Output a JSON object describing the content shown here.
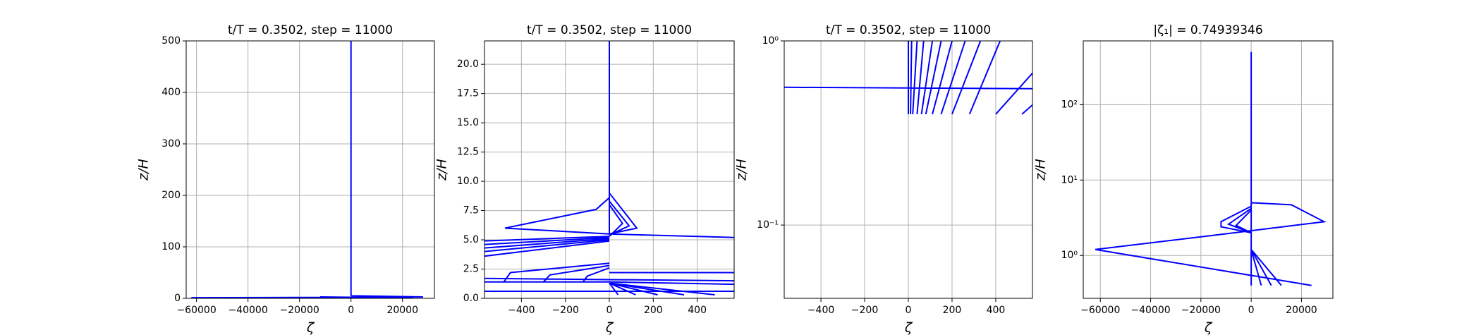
{
  "chart_data": [
    {
      "type": "line",
      "title": "t/T = 0.3502, step = 11000",
      "xlabel": "ζ",
      "ylabel": "z/H",
      "grid": true,
      "color": "#0000ff",
      "yscale": "linear",
      "xlim": [
        -64000,
        32400
      ],
      "ylim": [
        0,
        500
      ],
      "xticks": [
        {
          "value": -60000,
          "label": "−60000"
        },
        {
          "value": -40000,
          "label": "−40000"
        },
        {
          "value": -20000,
          "label": "−20000"
        },
        0,
        20000
      ],
      "yticks": [
        0,
        100,
        200,
        300,
        400,
        500
      ],
      "series": [
        {
          "color": "#0000ff",
          "x": [
            0,
            0,
            null,
            0,
            -62000,
            0,
            28000,
            0,
            null,
            -12000,
            0,
            24000
          ],
          "values": [
            5,
            500,
            null,
            0.4,
            1.2,
            2,
            2.8,
            5,
            null,
            2.8,
            2,
            0.4
          ]
        }
      ]
    },
    {
      "type": "line",
      "title": "t/T = 0.3502, step = 11000",
      "xlabel": "ζ",
      "ylabel": "z/H",
      "grid": true,
      "color": "#0000ff",
      "yscale": "linear",
      "xlim": [
        -568,
        568
      ],
      "ylim": [
        0,
        22
      ],
      "xticks": [
        {
          "value": -400,
          "label": "−400"
        },
        {
          "value": -200,
          "label": "−200"
        },
        0,
        200,
        400
      ],
      "yticks": [
        {
          "value": 0,
          "label": "0.0"
        },
        2.5,
        {
          "value": 5,
          "label": "5.0"
        },
        7.5,
        {
          "value": 10,
          "label": "10.0"
        },
        12.5,
        {
          "value": 15,
          "label": "15.0"
        },
        17.5,
        {
          "value": 20,
          "label": "20.0"
        }
      ],
      "series": [
        {
          "color": "#0000ff",
          "x": [
            0,
            0,
            null,
            0,
            -60,
            -475,
            0,
            570,
            null,
            0,
            125,
            0,
            null,
            0,
            90,
            0,
            null,
            0,
            60,
            0,
            null,
            -570,
            0,
            null,
            -570,
            0,
            null,
            -570,
            0,
            null,
            -570,
            0,
            null,
            -570,
            0,
            null,
            -480,
            -450,
            0,
            null,
            -300,
            -270,
            0,
            null,
            -120,
            -100,
            0,
            null,
            -570,
            0,
            570,
            null,
            -570,
            0,
            570,
            null,
            0,
            570,
            null,
            -570,
            570,
            null,
            0,
            40,
            null,
            0,
            120,
            null,
            0,
            220,
            null,
            0,
            340,
            null,
            0,
            480
          ],
          "values": [
            5.5,
            22,
            null,
            8.6,
            7.6,
            6.0,
            5.5,
            5.2,
            null,
            9,
            6.0,
            5.5,
            null,
            8.3,
            6.2,
            5.4,
            null,
            8.0,
            6.4,
            5.3,
            null,
            4.9,
            5.3,
            null,
            4.6,
            5.2,
            null,
            4.3,
            5.1,
            null,
            4.0,
            5.0,
            null,
            3.6,
            4.9,
            null,
            1.4,
            2.2,
            3.0,
            null,
            1.4,
            2.0,
            2.8,
            null,
            1.4,
            1.9,
            2.6,
            null,
            1.7,
            1.6,
            1.5,
            null,
            1.4,
            1.4,
            1.2,
            null,
            2.2,
            2.2,
            null,
            0.6,
            0.6,
            null,
            1.3,
            0.3,
            null,
            1.3,
            0.3,
            null,
            1.3,
            0.3,
            null,
            1.3,
            0.3,
            null,
            1.3,
            0.3
          ]
        }
      ]
    },
    {
      "type": "line",
      "title": "t/T = 0.3502, step = 11000",
      "xlabel": "ζ",
      "ylabel": "z/H",
      "grid": true,
      "color": "#0000ff",
      "yscale": "log",
      "xlim": [
        -568,
        568
      ],
      "ylim": [
        0.04,
        1
      ],
      "xticks": [
        {
          "value": -400,
          "label": "−400"
        },
        {
          "value": -200,
          "label": "−200"
        },
        0,
        200,
        400
      ],
      "yticks": [
        {
          "value": 0.1,
          "label": "10⁻¹"
        },
        {
          "value": 1,
          "label": "10⁰"
        }
      ],
      "series": [
        {
          "color": "#0000ff",
          "x": [
            -570,
            570,
            null,
            0,
            0,
            null,
            10,
            15,
            null,
            20,
            40,
            null,
            40,
            70,
            null,
            60,
            110,
            null,
            80,
            150,
            null,
            110,
            200,
            null,
            150,
            260,
            null,
            200,
            330,
            null,
            280,
            420,
            null,
            400,
            700,
            null,
            520,
            900
          ],
          "values": [
            0.56,
            0.55,
            null,
            0.4,
            1,
            null,
            0.4,
            1,
            null,
            0.4,
            1,
            null,
            0.4,
            1,
            null,
            0.4,
            1,
            null,
            0.4,
            1,
            null,
            0.4,
            1,
            null,
            0.4,
            1,
            null,
            0.4,
            1,
            null,
            0.4,
            1,
            null,
            0.4,
            1,
            null,
            0.4,
            1
          ]
        }
      ]
    },
    {
      "type": "line",
      "title": "|ζ₁| = 0.74939346",
      "xlabel": "ζ",
      "ylabel": "z/H",
      "grid": true,
      "color": "#0000ff",
      "yscale": "log",
      "xlim": [
        -66800,
        32500
      ],
      "ylim": [
        0.27,
        700
      ],
      "xticks": [
        {
          "value": -60000,
          "label": "−60000"
        },
        {
          "value": -40000,
          "label": "−40000"
        },
        {
          "value": -20000,
          "label": "−20000"
        },
        0,
        20000
      ],
      "yticks": [
        {
          "value": 1,
          "label": "10⁰"
        },
        {
          "value": 10,
          "label": "10¹"
        },
        {
          "value": 100,
          "label": "10²"
        }
      ],
      "series": [
        {
          "color": "#0000ff",
          "x": [
            0,
            0,
            null,
            0,
            16000,
            29000,
            -12000,
            -62000,
            24000,
            null,
            0,
            -12000,
            -12000,
            0,
            null,
            0,
            -9000,
            0,
            null,
            0,
            -6000,
            0,
            null,
            0,
            4000,
            null,
            0,
            8000,
            null,
            0,
            12000
          ],
          "values": [
            0.4,
            500,
            null,
            5,
            4.7,
            2.8,
            1.9,
            1.2,
            0.4,
            null,
            4.5,
            2.8,
            2.4,
            2.0,
            null,
            4.2,
            2.6,
            2.0,
            null,
            4.0,
            2.5,
            2.0,
            null,
            1.2,
            0.4,
            null,
            1.2,
            0.4,
            null,
            1.2,
            0.4
          ]
        }
      ]
    }
  ]
}
